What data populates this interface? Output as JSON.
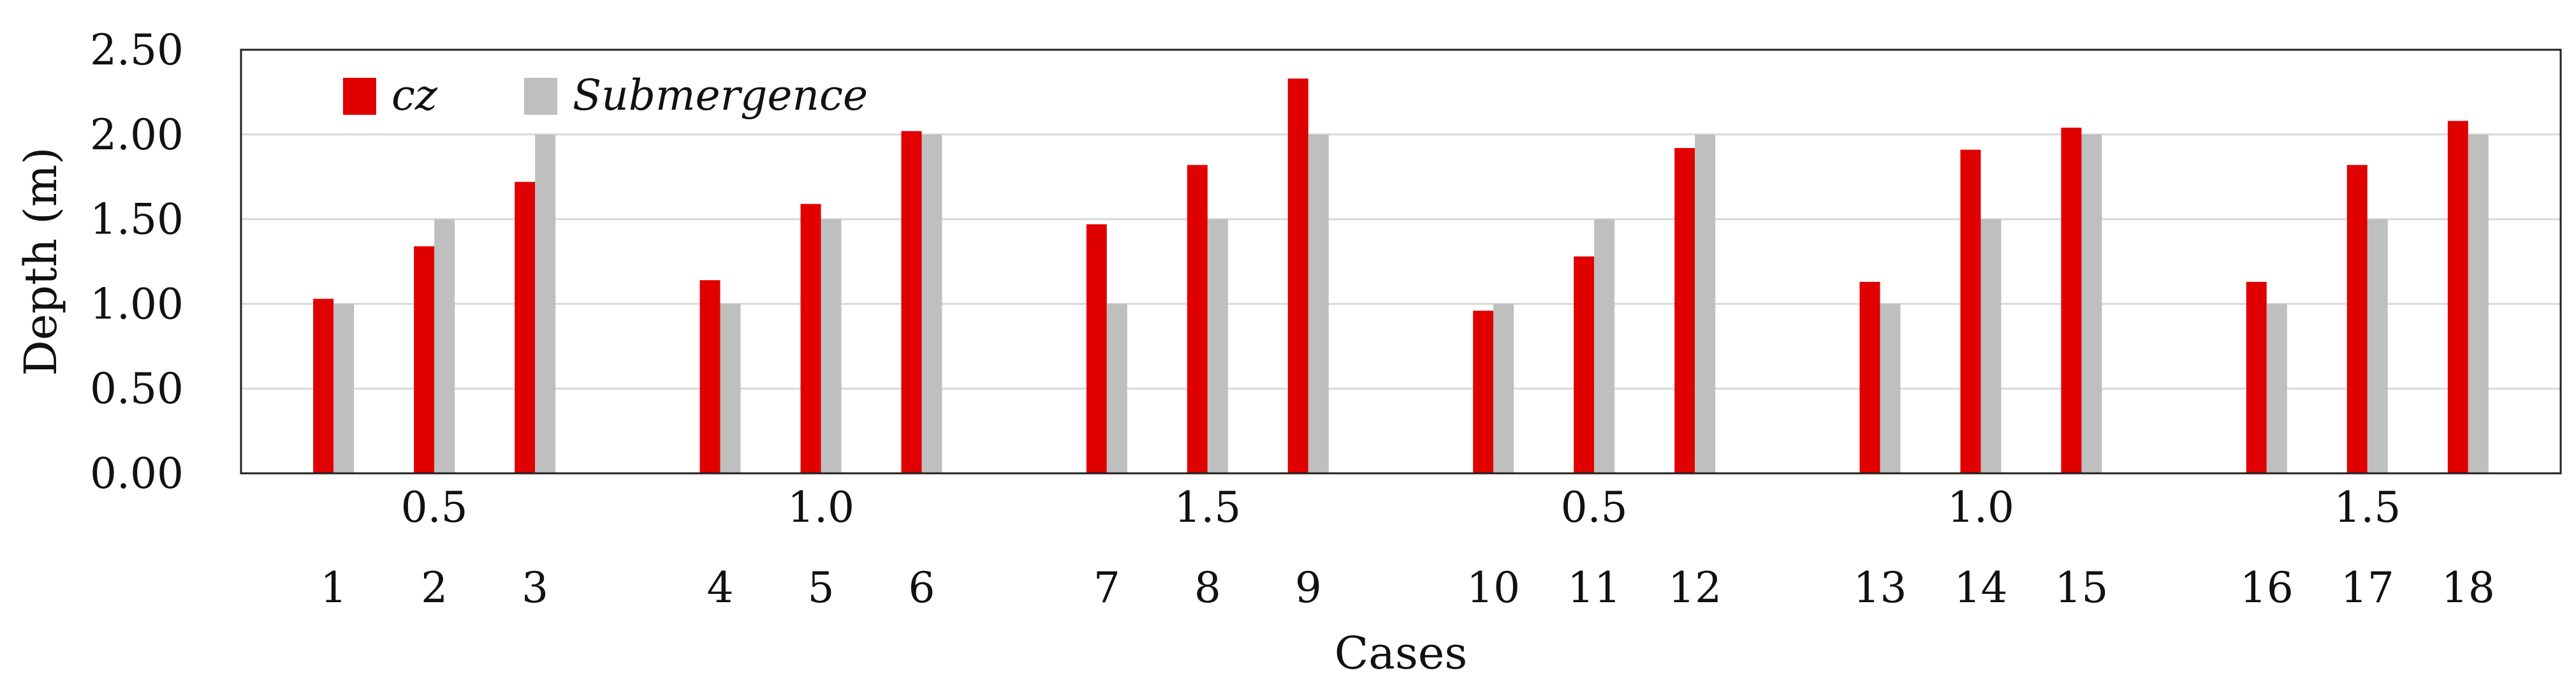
{
  "chart_data": {
    "type": "bar",
    "title": "",
    "xlabel": "Cases",
    "ylabel": "Depth (m)",
    "ylim": [
      0,
      2.5
    ],
    "yticks": [
      "0.00",
      "0.50",
      "1.00",
      "1.50",
      "2.00",
      "2.50"
    ],
    "grid": "horizontal",
    "legend_position": "top-left",
    "categories": [
      "1",
      "2",
      "3",
      "4",
      "5",
      "6",
      "7",
      "8",
      "9",
      "10",
      "11",
      "12",
      "13",
      "14",
      "15",
      "16",
      "17",
      "18"
    ],
    "groups": [
      {
        "label": "0.5",
        "cases": [
          "1",
          "2",
          "3"
        ]
      },
      {
        "label": "1.0",
        "cases": [
          "4",
          "5",
          "6"
        ]
      },
      {
        "label": "1.5",
        "cases": [
          "7",
          "8",
          "9"
        ]
      },
      {
        "label": "0.5",
        "cases": [
          "10",
          "11",
          "12"
        ]
      },
      {
        "label": "1.0",
        "cases": [
          "13",
          "14",
          "15"
        ]
      },
      {
        "label": "1.5",
        "cases": [
          "16",
          "17",
          "18"
        ]
      }
    ],
    "series": [
      {
        "name": "cz",
        "color": "#e00000",
        "values": [
          1.03,
          1.34,
          1.72,
          1.14,
          1.59,
          2.02,
          1.47,
          1.82,
          2.33,
          0.96,
          1.28,
          1.92,
          1.13,
          1.91,
          2.04,
          1.13,
          1.82,
          2.08
        ]
      },
      {
        "name": "Submergence",
        "color": "#bfbfbf",
        "values": [
          1.0,
          1.5,
          2.0,
          1.0,
          1.5,
          2.0,
          1.0,
          1.5,
          2.0,
          1.0,
          1.5,
          2.0,
          1.0,
          1.5,
          2.0,
          1.0,
          1.5,
          2.0
        ]
      }
    ]
  }
}
